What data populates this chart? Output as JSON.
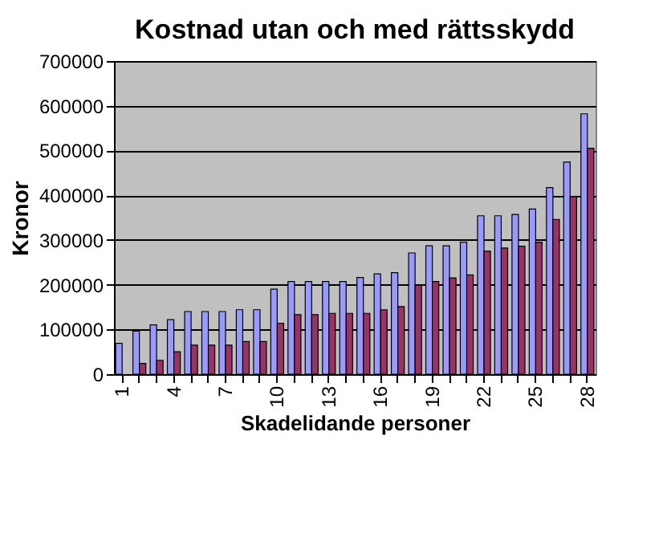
{
  "chart_data": {
    "type": "bar",
    "title": "Kostnad utan och med rättsskydd",
    "xlabel": "Skadelidande personer",
    "ylabel": "Kronor",
    "categories": [
      "1",
      null,
      null,
      "4",
      null,
      null,
      "7",
      null,
      null,
      "10",
      null,
      null,
      "13",
      null,
      null,
      "16",
      null,
      null,
      "19",
      null,
      null,
      "22",
      null,
      null,
      "25",
      null,
      null,
      "28"
    ],
    "series": [
      {
        "color": "#9999ff",
        "values": [
          69000,
          96000,
          110000,
          122000,
          140000,
          140000,
          140000,
          144000,
          144000,
          190000,
          207000,
          207000,
          207000,
          207000,
          216000,
          224000,
          227000,
          271000,
          287000,
          287000,
          295000,
          354000,
          354000,
          357000,
          369000,
          417000,
          474000,
          582000
        ]
      },
      {
        "color": "#993366",
        "values": [
          null,
          24000,
          31000,
          50000,
          65000,
          65000,
          65000,
          73000,
          73000,
          114000,
          133000,
          133000,
          136000,
          136000,
          136000,
          144000,
          151000,
          199000,
          207000,
          215000,
          222000,
          275000,
          282000,
          286000,
          295000,
          346000,
          397000,
          505000
        ]
      }
    ],
    "ylim": [
      0,
      700000
    ],
    "yticks": [
      0,
      100000,
      200000,
      300000,
      400000,
      500000,
      600000,
      700000
    ],
    "grid": "y",
    "legend": false
  }
}
